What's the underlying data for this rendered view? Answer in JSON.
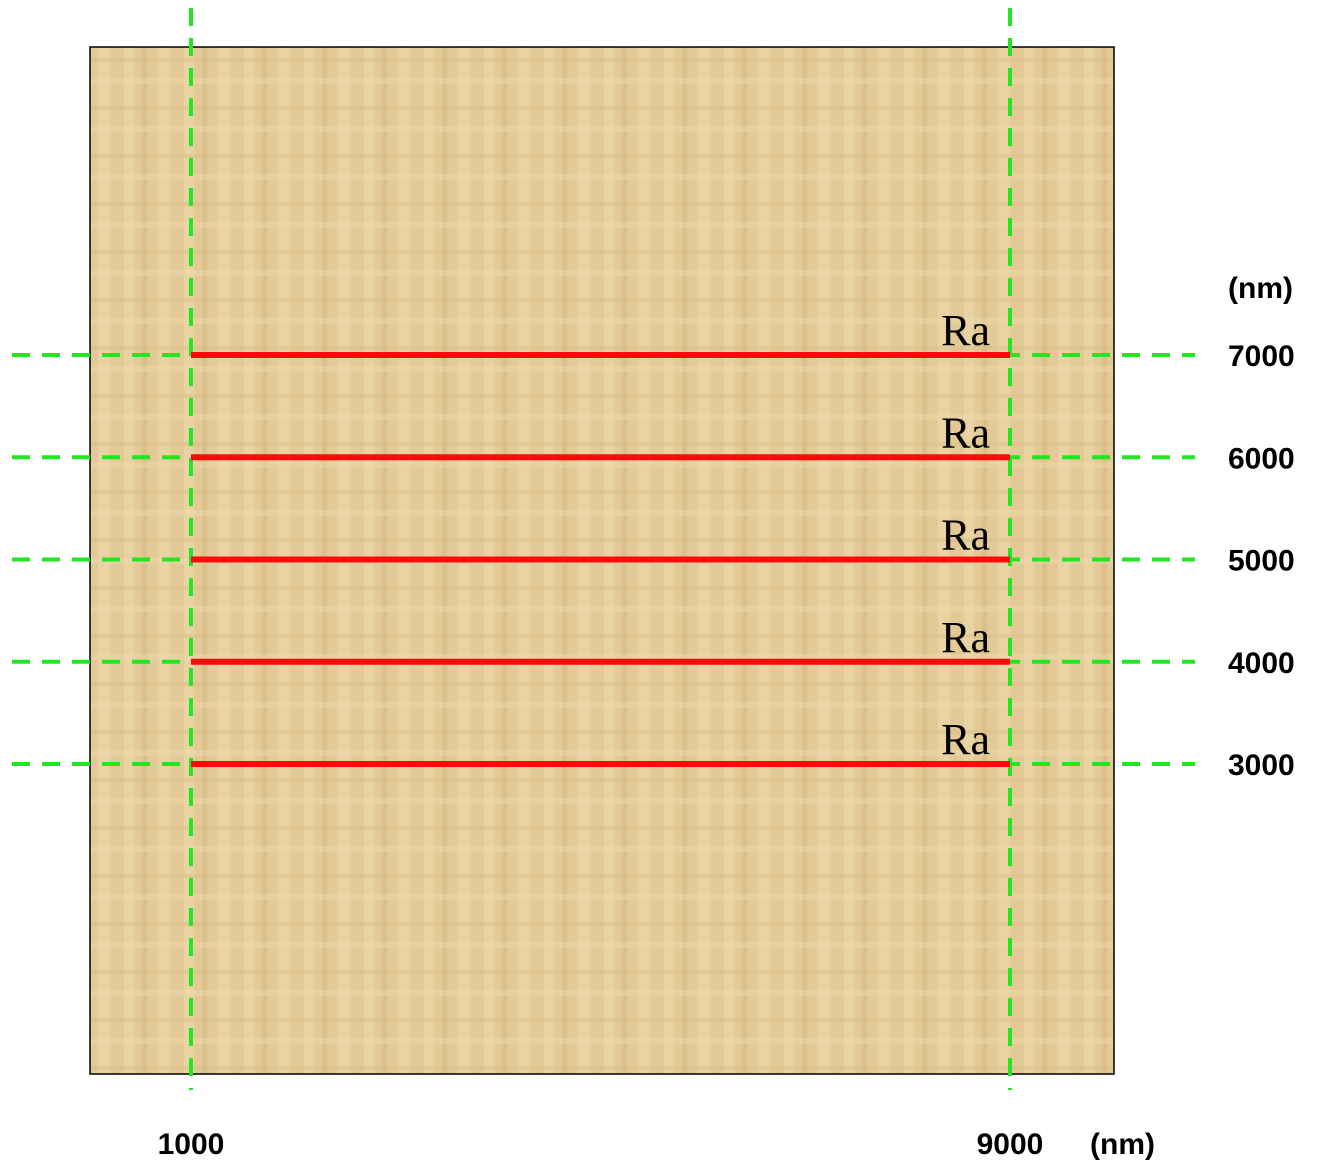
{
  "diagram": {
    "x_axis": {
      "ticks": [
        1000,
        9000
      ],
      "unit": "(nm)"
    },
    "y_axis": {
      "ticks": [
        7000,
        6000,
        5000,
        4000,
        3000
      ],
      "unit": "(nm)"
    },
    "scan_lines": {
      "labels": [
        "Ra",
        "Ra",
        "Ra",
        "Ra",
        "Ra"
      ]
    }
  }
}
